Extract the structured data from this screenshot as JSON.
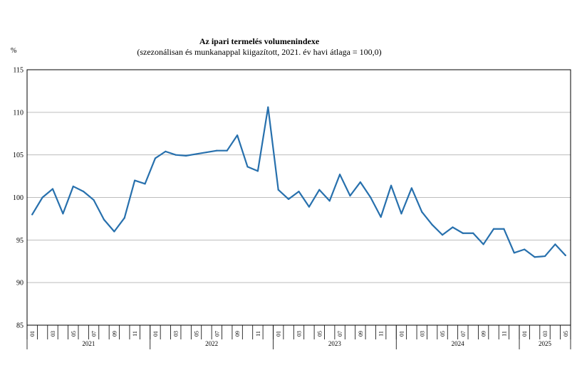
{
  "chart_data": {
    "type": "line",
    "title": "Az ipari termelés volumenindexe",
    "subtitle": "(szezonálisan és munkanappal kiigazított, 2021. év havi átlaga = 100,0)",
    "ylabel": "%",
    "ylim": [
      85,
      115
    ],
    "yticks": [
      "85",
      "90",
      "95",
      "100",
      "105",
      "110",
      "115"
    ],
    "grid": true,
    "legend": "none",
    "line_color": "#2770ad",
    "x_month_labels": [
      "01",
      "03",
      "05",
      "07",
      "09",
      "11",
      "01",
      "03",
      "05",
      "07",
      "09",
      "11",
      "01",
      "03",
      "05",
      "07",
      "09",
      "11",
      "01",
      "03",
      "05",
      "07",
      "09",
      "11",
      "01",
      "03",
      "05"
    ],
    "years": [
      {
        "label": "2021",
        "months": 12
      },
      {
        "label": "2022",
        "months": 12
      },
      {
        "label": "2023",
        "months": 12
      },
      {
        "label": "2024",
        "months": 12
      },
      {
        "label": "2025",
        "months": 5
      }
    ],
    "x": [
      "2021-01",
      "2021-02",
      "2021-03",
      "2021-04",
      "2021-05",
      "2021-06",
      "2021-07",
      "2021-08",
      "2021-09",
      "2021-10",
      "2021-11",
      "2021-12",
      "2022-01",
      "2022-02",
      "2022-03",
      "2022-04",
      "2022-05",
      "2022-06",
      "2022-07",
      "2022-08",
      "2022-09",
      "2022-10",
      "2022-11",
      "2022-12",
      "2023-01",
      "2023-02",
      "2023-03",
      "2023-04",
      "2023-05",
      "2023-06",
      "2023-07",
      "2023-08",
      "2023-09",
      "2023-10",
      "2023-11",
      "2023-12",
      "2024-01",
      "2024-02",
      "2024-03",
      "2024-04",
      "2024-05",
      "2024-06",
      "2024-07",
      "2024-08",
      "2024-09",
      "2024-10",
      "2024-11",
      "2024-12",
      "2025-01",
      "2025-02",
      "2025-03",
      "2025-04",
      "2025-05"
    ],
    "values": [
      98.0,
      100.0,
      101.0,
      98.1,
      101.3,
      100.7,
      99.7,
      97.4,
      96.0,
      97.6,
      102.0,
      101.6,
      104.6,
      105.4,
      105.0,
      104.9,
      105.1,
      105.3,
      105.5,
      105.5,
      107.3,
      103.6,
      103.1,
      110.6,
      100.9,
      99.8,
      100.7,
      98.9,
      100.9,
      99.6,
      102.7,
      100.2,
      101.8,
      100.0,
      97.7,
      101.4,
      98.1,
      101.1,
      98.3,
      96.8,
      95.6,
      96.5,
      95.8,
      95.8,
      94.5,
      96.3,
      96.3,
      93.5,
      93.9,
      93.0,
      93.1,
      94.5,
      93.2
    ]
  }
}
